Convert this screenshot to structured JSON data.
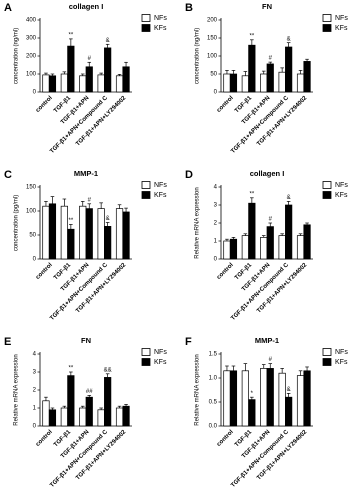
{
  "chart_data": [
    {
      "type": "bar",
      "panel_label": "A",
      "title": "collagen I",
      "ylabel": "concentration (ng/ml)",
      "categories": [
        "control",
        "TGF-β1",
        "TGF-β1+APN",
        "TGF-β1+APN+Compound C",
        "TGF-β1+APN+LY294002"
      ],
      "series": [
        {
          "name": "NFs",
          "color": "#ffffff",
          "values": [
            95,
            100,
            90,
            95,
            90
          ],
          "errors": [
            10,
            12,
            10,
            10,
            8
          ]
        },
        {
          "name": "KFs",
          "color": "#000000",
          "values": [
            90,
            255,
            140,
            245,
            140
          ],
          "errors": [
            10,
            40,
            25,
            20,
            25
          ],
          "annotations": [
            null,
            "**",
            "#",
            "&",
            null
          ]
        }
      ],
      "ylim": [
        0,
        400
      ],
      "yticks": [
        0,
        100,
        200,
        300,
        400
      ]
    },
    {
      "type": "bar",
      "panel_label": "B",
      "title": "FN",
      "ylabel": "concentration (ng/ml)",
      "categories": [
        "control",
        "TGF-β1",
        "TGF-β1+APN",
        "TGF-β1+APN+Compound C",
        "TGF-β1+APN+LY294002"
      ],
      "series": [
        {
          "name": "NFs",
          "color": "#ffffff",
          "values": [
            50,
            45,
            50,
            55,
            50
          ],
          "errors": [
            10,
            12,
            8,
            12,
            10
          ]
        },
        {
          "name": "KFs",
          "color": "#000000",
          "values": [
            50,
            130,
            78,
            125,
            85
          ],
          "errors": [
            10,
            15,
            5,
            12,
            6
          ],
          "annotations": [
            null,
            "**",
            "#",
            "&",
            null
          ]
        }
      ],
      "ylim": [
        0,
        200
      ],
      "yticks": [
        0,
        50,
        100,
        150,
        200
      ]
    },
    {
      "type": "bar",
      "panel_label": "C",
      "title": "MMP-1",
      "ylabel": "concentration (pg/ml)",
      "categories": [
        "control",
        "TGF-β1",
        "TGF-β1+APN",
        "TGF-β1+APN+Compound C",
        "TGF-β1+APN+LY294002"
      ],
      "series": [
        {
          "name": "NFs",
          "color": "#ffffff",
          "values": [
            110,
            110,
            110,
            105,
            105
          ],
          "errors": [
            10,
            15,
            10,
            12,
            8
          ]
        },
        {
          "name": "KFs",
          "color": "#000000",
          "values": [
            115,
            62,
            105,
            68,
            98
          ],
          "errors": [
            15,
            10,
            10,
            8,
            8
          ],
          "annotations": [
            null,
            "**",
            "#",
            "&",
            null
          ]
        }
      ],
      "ylim": [
        0,
        150
      ],
      "yticks": [
        0,
        50,
        100,
        150
      ]
    },
    {
      "type": "bar",
      "panel_label": "D",
      "title": "collagen I",
      "ylabel": "Relative mRNA expression",
      "categories": [
        "control",
        "TGF-β1",
        "TGF-β1+APN",
        "TGF-β1+APN+Compound C",
        "TGF-β1+APN+LY294002"
      ],
      "series": [
        {
          "name": "NFs",
          "color": "#ffffff",
          "values": [
            1.0,
            1.3,
            1.2,
            1.3,
            1.3
          ],
          "errors": [
            0.1,
            0.1,
            0.1,
            0.1,
            0.1
          ]
        },
        {
          "name": "KFs",
          "color": "#000000",
          "values": [
            1.1,
            3.1,
            1.8,
            3.0,
            1.9
          ],
          "errors": [
            0.1,
            0.3,
            0.2,
            0.2,
            0.1
          ],
          "annotations": [
            null,
            "**",
            "#",
            "&",
            null
          ]
        }
      ],
      "ylim": [
        0,
        4
      ],
      "yticks": [
        0,
        1,
        2,
        3,
        4
      ]
    },
    {
      "type": "bar",
      "panel_label": "E",
      "title": "FN",
      "ylabel": "Relative mRNA expression",
      "categories": [
        "control",
        "TGF-β1",
        "TGF-β1+APN",
        "TGF-β1+APN+Compound C",
        "TGF-β1+APN+LY294002"
      ],
      "series": [
        {
          "name": "NFs",
          "color": "#ffffff",
          "values": [
            1.4,
            1.0,
            1.0,
            0.9,
            1.0
          ],
          "errors": [
            0.2,
            0.1,
            0.1,
            0.1,
            0.1
          ]
        },
        {
          "name": "KFs",
          "color": "#000000",
          "values": [
            0.9,
            2.8,
            1.6,
            2.7,
            1.1
          ],
          "errors": [
            0.1,
            0.2,
            0.1,
            0.2,
            0.1
          ],
          "annotations": [
            null,
            "**",
            "##",
            "&&",
            null
          ]
        }
      ],
      "ylim": [
        0,
        4
      ],
      "yticks": [
        0,
        1,
        2,
        3,
        4
      ]
    },
    {
      "type": "bar",
      "panel_label": "F",
      "title": "MMP-1",
      "ylabel": "Relative mRNA expression",
      "categories": [
        "control",
        "TGF-β1",
        "TGF-β1+APN",
        "TGF-β1+APN+Compound C",
        "TGF-β1+APN+LY294002"
      ],
      "series": [
        {
          "name": "NFs",
          "color": "#ffffff",
          "values": [
            1.15,
            1.15,
            1.2,
            1.1,
            1.05
          ],
          "errors": [
            0.1,
            0.15,
            0.08,
            0.1,
            0.1
          ]
        },
        {
          "name": "KFs",
          "color": "#000000",
          "values": [
            1.15,
            0.55,
            1.2,
            0.6,
            1.15
          ],
          "errors": [
            0.1,
            0.05,
            0.1,
            0.08,
            0.08
          ],
          "annotations": [
            null,
            "*",
            "#",
            "&",
            null
          ]
        }
      ],
      "ylim": [
        0,
        1.5
      ],
      "yticks": [
        {
          "value": 0,
          "label": "0.0"
        },
        {
          "value": 0.5,
          "label": "0.5"
        },
        {
          "value": 1,
          "label": "1.0"
        },
        {
          "value": 1.5,
          "label": "1.5"
        }
      ]
    }
  ]
}
